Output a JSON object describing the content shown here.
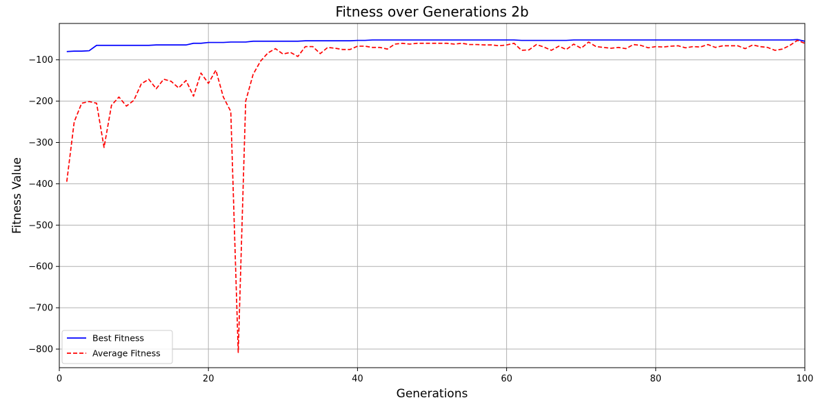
{
  "chart_data": {
    "type": "line",
    "title": "Fitness over Generations 2b",
    "xlabel": "Generations",
    "ylabel": "Fitness Value",
    "xlim": [
      0,
      100
    ],
    "ylim": [
      -845,
      -12
    ],
    "xticks": [
      0,
      20,
      40,
      60,
      80,
      100
    ],
    "yticks": [
      -100,
      -200,
      -300,
      -400,
      -500,
      -600,
      -700,
      -800
    ],
    "grid": true,
    "legend_position": "lower-left",
    "series": [
      {
        "name": "Best Fitness",
        "color": "#0000ff",
        "style": "solid",
        "x": [
          1,
          2,
          3,
          4,
          5,
          6,
          7,
          8,
          9,
          10,
          11,
          12,
          13,
          14,
          15,
          16,
          17,
          18,
          19,
          20,
          21,
          22,
          23,
          24,
          25,
          26,
          27,
          28,
          29,
          30,
          31,
          32,
          33,
          34,
          35,
          36,
          37,
          38,
          39,
          40,
          41,
          42,
          43,
          44,
          45,
          46,
          47,
          48,
          49,
          50,
          51,
          52,
          53,
          54,
          55,
          56,
          57,
          58,
          59,
          60,
          61,
          62,
          63,
          64,
          65,
          66,
          67,
          68,
          69,
          70,
          71,
          72,
          73,
          74,
          75,
          76,
          77,
          78,
          79,
          80,
          81,
          82,
          83,
          84,
          85,
          86,
          87,
          88,
          89,
          90,
          91,
          92,
          93,
          94,
          95,
          96,
          97,
          98,
          99,
          100
        ],
        "values": [
          -80,
          -79,
          -79,
          -78,
          -65,
          -65,
          -65,
          -65,
          -65,
          -65,
          -65,
          -65,
          -64,
          -64,
          -64,
          -64,
          -64,
          -60,
          -60,
          -58,
          -58,
          -58,
          -57,
          -57,
          -57,
          -55,
          -55,
          -55,
          -55,
          -55,
          -55,
          -55,
          -54,
          -54,
          -54,
          -54,
          -54,
          -54,
          -54,
          -53,
          -53,
          -52,
          -52,
          -52,
          -52,
          -52,
          -52,
          -52,
          -52,
          -52,
          -52,
          -52,
          -52,
          -52,
          -52,
          -52,
          -52,
          -52,
          -52,
          -52,
          -52,
          -53,
          -53,
          -53,
          -53,
          -53,
          -53,
          -53,
          -52,
          -52,
          -52,
          -52,
          -52,
          -52,
          -52,
          -52,
          -52,
          -52,
          -52,
          -52,
          -52,
          -52,
          -52,
          -52,
          -52,
          -52,
          -52,
          -52,
          -52,
          -52,
          -52,
          -52,
          -52,
          -52,
          -52,
          -52,
          -52,
          -52,
          -51,
          -55
        ]
      },
      {
        "name": "Average Fitness",
        "color": "#ff0000",
        "style": "dashed",
        "x": [
          1,
          2,
          3,
          4,
          5,
          6,
          7,
          8,
          9,
          10,
          11,
          12,
          13,
          14,
          15,
          16,
          17,
          18,
          19,
          20,
          21,
          22,
          23,
          24,
          25,
          26,
          27,
          28,
          29,
          30,
          31,
          32,
          33,
          34,
          35,
          36,
          37,
          38,
          39,
          40,
          41,
          42,
          43,
          44,
          45,
          46,
          47,
          48,
          49,
          50,
          51,
          52,
          53,
          54,
          55,
          56,
          57,
          58,
          59,
          60,
          61,
          62,
          63,
          64,
          65,
          66,
          67,
          68,
          69,
          70,
          71,
          72,
          73,
          74,
          75,
          76,
          77,
          78,
          79,
          80,
          81,
          82,
          83,
          84,
          85,
          86,
          87,
          88,
          89,
          90,
          91,
          92,
          93,
          94,
          95,
          96,
          97,
          98,
          99,
          100
        ],
        "values": [
          -395,
          -250,
          -205,
          -201,
          -205,
          -312,
          -210,
          -190,
          -212,
          -198,
          -158,
          -147,
          -170,
          -147,
          -152,
          -168,
          -150,
          -188,
          -132,
          -157,
          -125,
          -190,
          -225,
          -808,
          -200,
          -135,
          -103,
          -83,
          -73,
          -86,
          -82,
          -92,
          -68,
          -68,
          -85,
          -70,
          -72,
          -75,
          -75,
          -67,
          -67,
          -70,
          -70,
          -74,
          -62,
          -60,
          -62,
          -60,
          -60,
          -60,
          -60,
          -60,
          -62,
          -60,
          -63,
          -63,
          -64,
          -64,
          -66,
          -64,
          -60,
          -77,
          -76,
          -63,
          -69,
          -77,
          -67,
          -75,
          -62,
          -72,
          -57,
          -68,
          -70,
          -72,
          -70,
          -73,
          -63,
          -65,
          -71,
          -68,
          -69,
          -67,
          -66,
          -71,
          -68,
          -69,
          -63,
          -70,
          -66,
          -66,
          -66,
          -73,
          -64,
          -68,
          -70,
          -77,
          -74,
          -65,
          -53,
          -60
        ]
      }
    ]
  }
}
